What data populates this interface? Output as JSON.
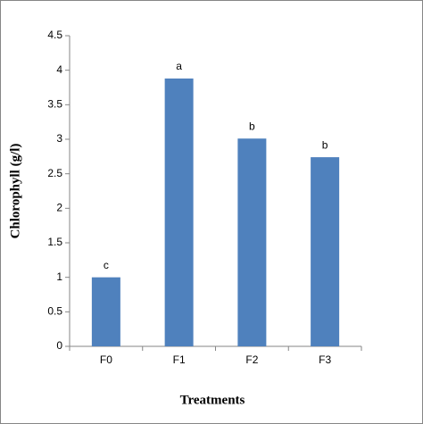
{
  "chart_data": {
    "type": "bar",
    "categories": [
      "F0",
      "F1",
      "F2",
      "F3"
    ],
    "values": [
      1.0,
      3.88,
      3.01,
      2.74
    ],
    "annotations": [
      "c",
      "a",
      "b",
      "b"
    ],
    "color": "#4f81bd",
    "y_label": "Chlorophyll (g/l)",
    "x_label": "Treatments",
    "ylim": [
      0,
      4.5
    ],
    "yticks": [
      0,
      0.5,
      1,
      1.5,
      2,
      2.5,
      3,
      3.5,
      4,
      4.5
    ],
    "grid": false
  }
}
